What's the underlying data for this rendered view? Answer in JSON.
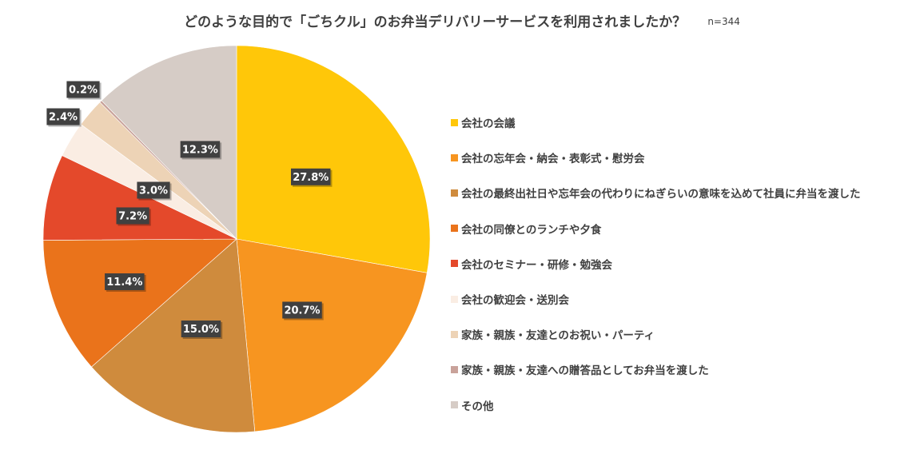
{
  "title": "どのような目的で「ごちクル」のお弁当デリバリーサービスを利用されましたか？",
  "sample_size": "n=344",
  "chart_data": {
    "type": "pie",
    "title": "どのような目的で「ごちクル」のお弁当デリバリーサービスを利用されましたか？",
    "start_angle": "12 o'clock",
    "direction": "clockwise",
    "legend_position": "right",
    "slices": [
      {
        "label": "会社の会議",
        "value": 27.8,
        "display": "27.8%",
        "color": "#FFC709"
      },
      {
        "label": "会社の忘年会・納会・表彰式・慰労会",
        "value": 20.7,
        "display": "20.7%",
        "color": "#F79520"
      },
      {
        "label": "会社の最終出社日や忘年会の代わりにねぎらいの意味を込めて社員に弁当を渡した",
        "value": 15.0,
        "display": "15.0%",
        "color": "#CF8B3D"
      },
      {
        "label": "会社の同僚とのランチや夕食",
        "value": 11.4,
        "display": "11.4%",
        "color": "#EA731B"
      },
      {
        "label": "会社のセミナー・研修・勉強会",
        "value": 7.2,
        "display": "7.2%",
        "color": "#E4492B"
      },
      {
        "label": "会社の歓迎会・送別会",
        "value": 3.0,
        "display": "3.0%",
        "color": "#FAEDE3"
      },
      {
        "label": "家族・親族・友達とのお祝い・パーティ",
        "value": 2.4,
        "display": "2.4%",
        "color": "#EDD3B6"
      },
      {
        "label": "家族・親族・友達への贈答品としてお弁当を渡した",
        "value": 0.2,
        "display": "0.2%",
        "color": "#C9A29A"
      },
      {
        "label": "その他",
        "value": 12.3,
        "display": "12.3%",
        "color": "#D6CCC6"
      }
    ]
  }
}
